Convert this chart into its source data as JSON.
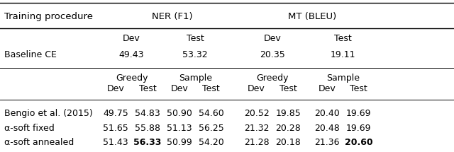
{
  "fig_width": 6.4,
  "fig_height": 2.15,
  "dpi": 100,
  "background_color": "#ffffff",
  "header1": {
    "col0": "Training procedure",
    "ner": "NER (F1)",
    "mt": "MT (BLEU)"
  },
  "baseline_header": {
    "ner_dev": "Dev",
    "ner_test": "Test",
    "mt_dev": "Dev",
    "mt_test": "Test"
  },
  "baseline_row": {
    "label": "Baseline CE",
    "ner_dev": "49.43",
    "ner_test": "53.32",
    "mt_dev": "20.35",
    "mt_test": "19.11"
  },
  "subheader1": {
    "ner_greedy": "Greedy",
    "ner_sample": "Sample",
    "mt_greedy": "Greedy",
    "mt_sample": "Sample"
  },
  "subheader2": {
    "ner_greedy_dev": "Dev",
    "ner_greedy_test": "Test",
    "ner_sample_dev": "Dev",
    "ner_sample_test": "Test",
    "mt_greedy_dev": "Dev",
    "mt_greedy_test": "Test",
    "mt_sample_dev": "Dev",
    "mt_sample_test": "Test"
  },
  "data_rows": [
    {
      "label": "Bengio et al. (2015)",
      "values": [
        "49.75",
        "54.83",
        "50.90",
        "54.60",
        "20.52",
        "19.85",
        "20.40",
        "19.69"
      ],
      "bold": [
        false,
        false,
        false,
        false,
        false,
        false,
        false,
        false
      ]
    },
    {
      "label": "α-soft fixed",
      "values": [
        "51.65",
        "55.88",
        "51.13",
        "56.25",
        "21.32",
        "20.28",
        "20.48",
        "19.69"
      ],
      "bold": [
        false,
        false,
        false,
        false,
        false,
        false,
        false,
        false
      ]
    },
    {
      "label": "α-soft annealed",
      "values": [
        "51.43",
        "56.33",
        "50.99",
        "54.20",
        "21.28",
        "20.18",
        "21.36",
        "20.60"
      ],
      "bold": [
        false,
        true,
        false,
        false,
        false,
        false,
        false,
        true
      ]
    }
  ],
  "font_size_header": 9.5,
  "font_size_body": 9.0,
  "font_family": "DejaVu Sans"
}
